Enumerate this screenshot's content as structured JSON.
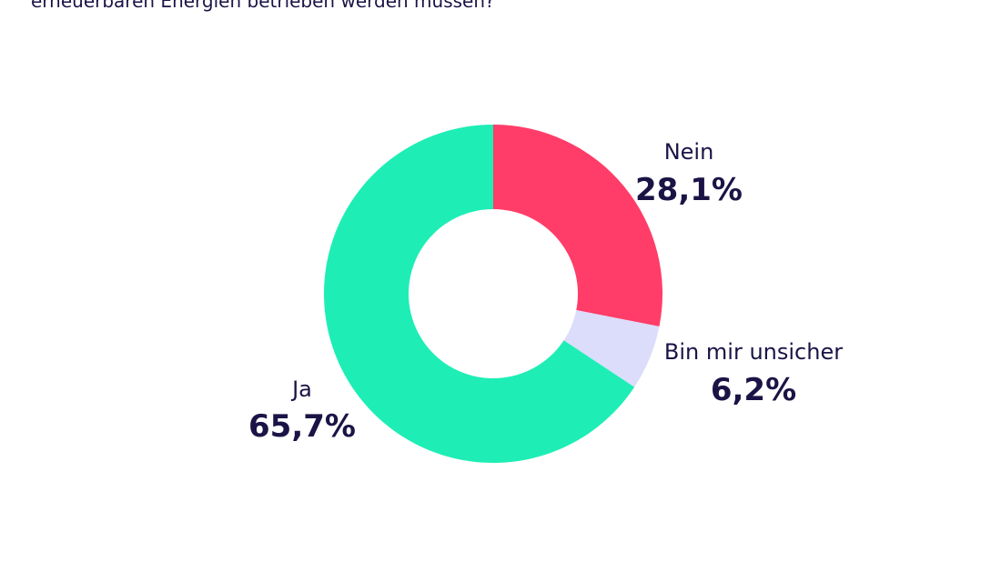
{
  "question_text": "erneuerbaren Energien betrieben werden müssen?",
  "chart_data": {
    "type": "pie",
    "donut": true,
    "title": "",
    "slices": [
      {
        "label": "Nein",
        "value": 28.1,
        "value_label": "28,1%",
        "color": "#ff3d68"
      },
      {
        "label": "Bin mir unsicher",
        "value": 6.2,
        "value_label": "6,2%",
        "color": "#dcdcfb"
      },
      {
        "label": "Ja",
        "value": 65.7,
        "value_label": "65,7%",
        "color": "#1eeeb5"
      }
    ]
  }
}
